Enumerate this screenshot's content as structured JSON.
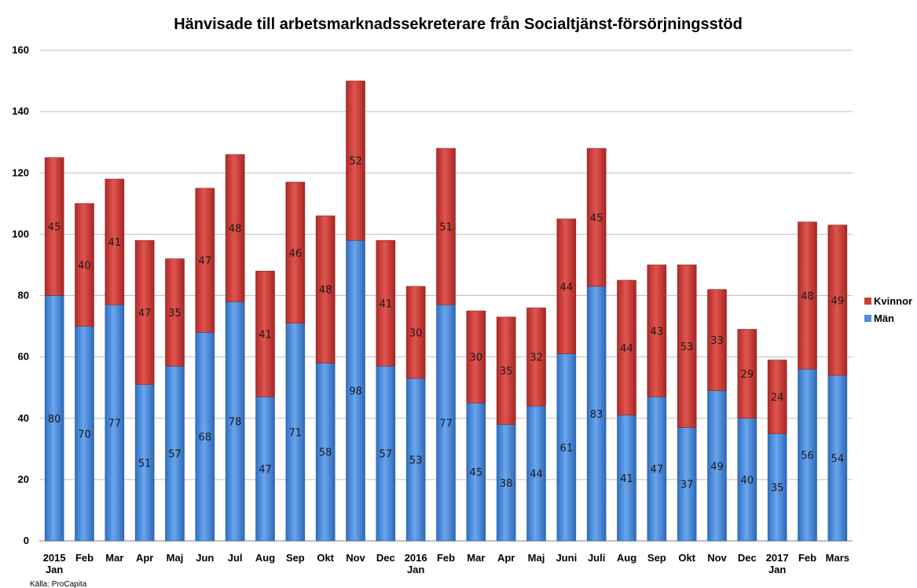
{
  "chart_data": {
    "type": "bar",
    "stacked": true,
    "title": "Hänvisade till arbetsmarknadssekreterare  från Socialtjänst-försörjningsstöd",
    "categories": [
      [
        "2015",
        "Jan"
      ],
      [
        "Feb"
      ],
      [
        "Mar"
      ],
      [
        "Apr"
      ],
      [
        "Maj"
      ],
      [
        "Jun"
      ],
      [
        "Jul"
      ],
      [
        "Aug"
      ],
      [
        "Sep"
      ],
      [
        "Okt"
      ],
      [
        "Nov"
      ],
      [
        "Dec"
      ],
      [
        "2016",
        "Jan"
      ],
      [
        "Feb"
      ],
      [
        "Mar"
      ],
      [
        "Apr"
      ],
      [
        "Maj"
      ],
      [
        "Juni"
      ],
      [
        "Juli"
      ],
      [
        "Aug"
      ],
      [
        "Sep"
      ],
      [
        "Okt"
      ],
      [
        "Nov"
      ],
      [
        "Dec"
      ],
      [
        "2017",
        "Jan"
      ],
      [
        "Feb"
      ],
      [
        "Mars"
      ]
    ],
    "series": [
      {
        "name": "Män",
        "color": "#4f8fdf",
        "values": [
          80,
          70,
          77,
          51,
          57,
          68,
          78,
          47,
          71,
          58,
          98,
          57,
          53,
          77,
          45,
          38,
          44,
          61,
          83,
          41,
          47,
          37,
          49,
          40,
          35,
          56,
          54
        ]
      },
      {
        "name": "Kvinnor",
        "color": "#cf3b36",
        "values": [
          45,
          40,
          41,
          47,
          35,
          47,
          48,
          41,
          46,
          48,
          52,
          41,
          30,
          51,
          30,
          35,
          32,
          44,
          45,
          44,
          43,
          53,
          33,
          29,
          24,
          48,
          49
        ]
      }
    ],
    "ylim": [
      0,
      160
    ],
    "yticks": [
      0,
      20,
      40,
      60,
      80,
      100,
      120,
      140,
      160
    ],
    "grid": true,
    "legend_position": "right",
    "source": "Källa: ProCapita"
  }
}
